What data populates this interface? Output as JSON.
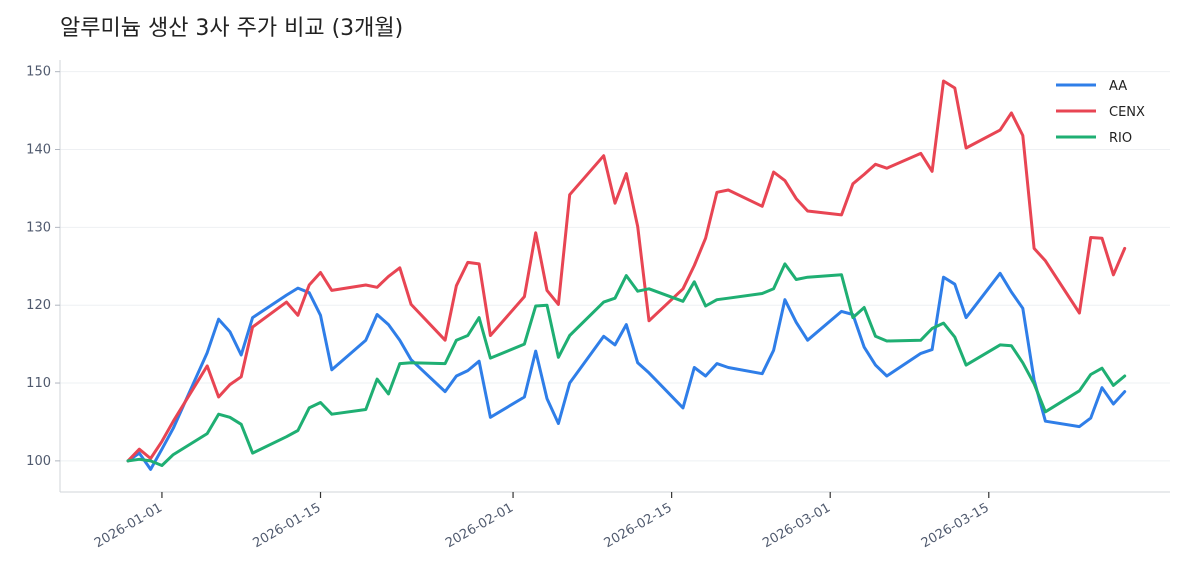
{
  "chart_data": {
    "type": "line",
    "title": "알루미늄 생산 3사 주가 비교 (3개월)",
    "xlabel": "",
    "ylabel": "",
    "ylim": [
      96,
      151.5
    ],
    "xlim": [
      "2025-12-23",
      "2026-03-31"
    ],
    "grid": "horizontal",
    "legend_position": "top-right",
    "y_ticks": [
      100,
      110,
      120,
      130,
      140,
      150
    ],
    "x_ticks": [
      "2026-01-01",
      "2026-01-15",
      "2026-02-01",
      "2026-02-15",
      "2026-03-01",
      "2026-03-15"
    ],
    "dates": [
      "2025-12-29",
      "2025-12-30",
      "2025-12-31",
      "2026-01-01",
      "2026-01-02",
      "2026-01-05",
      "2026-01-06",
      "2026-01-07",
      "2026-01-08",
      "2026-01-09",
      "2026-01-12",
      "2026-01-13",
      "2026-01-14",
      "2026-01-15",
      "2026-01-16",
      "2026-01-19",
      "2026-01-20",
      "2026-01-21",
      "2026-01-22",
      "2026-01-23",
      "2026-01-26",
      "2026-01-27",
      "2026-01-28",
      "2026-01-29",
      "2026-01-30",
      "2026-02-02",
      "2026-02-03",
      "2026-02-04",
      "2026-02-05",
      "2026-02-06",
      "2026-02-09",
      "2026-02-10",
      "2026-02-11",
      "2026-02-12",
      "2026-02-13",
      "2026-02-16",
      "2026-02-17",
      "2026-02-18",
      "2026-02-19",
      "2026-02-20",
      "2026-02-23",
      "2026-02-24",
      "2026-02-25",
      "2026-02-26",
      "2026-02-27",
      "2026-03-02",
      "2026-03-03",
      "2026-03-04",
      "2026-03-05",
      "2026-03-06",
      "2026-03-09",
      "2026-03-10",
      "2026-03-11",
      "2026-03-12",
      "2026-03-13",
      "2026-03-16",
      "2026-03-17",
      "2026-03-18",
      "2026-03-19",
      "2026-03-20",
      "2026-03-23",
      "2026-03-24",
      "2026-03-25",
      "2026-03-26",
      "2026-03-27"
    ],
    "series": [
      {
        "name": "AA",
        "color": "#2f7ee8",
        "values": [
          100.0,
          101.0,
          98.9,
          101.5,
          104.2,
          113.9,
          118.2,
          116.6,
          113.6,
          118.4,
          121.3,
          122.2,
          121.6,
          118.7,
          111.7,
          115.5,
          118.8,
          117.5,
          115.5,
          113.0,
          108.9,
          110.9,
          111.6,
          112.8,
          105.6,
          108.2,
          114.1,
          108.0,
          104.8,
          110.0,
          116.0,
          114.9,
          117.5,
          112.6,
          111.3,
          106.8,
          112.0,
          110.9,
          112.5,
          112.0,
          111.2,
          114.2,
          120.7,
          117.8,
          115.5,
          119.2,
          118.8,
          114.6,
          112.3,
          110.9,
          113.8,
          114.3,
          123.6,
          122.7,
          118.4,
          124.1,
          121.7,
          119.6,
          110.4,
          105.1,
          104.4,
          105.5,
          109.4,
          107.3,
          108.9
        ]
      },
      {
        "name": "CENX",
        "color": "#e84553",
        "values": [
          100.0,
          101.5,
          100.3,
          102.5,
          105.1,
          112.2,
          108.2,
          109.8,
          110.8,
          117.2,
          120.4,
          118.7,
          122.6,
          124.2,
          121.9,
          122.6,
          122.3,
          123.7,
          124.8,
          120.1,
          115.5,
          122.5,
          125.5,
          125.3,
          116.1,
          121.1,
          129.3,
          121.9,
          120.1,
          134.2,
          139.2,
          133.1,
          136.9,
          130.1,
          118.0,
          122.1,
          125.1,
          128.6,
          134.5,
          134.8,
          132.7,
          137.1,
          136.0,
          133.7,
          132.1,
          131.6,
          135.6,
          136.8,
          138.1,
          137.6,
          139.5,
          137.2,
          148.8,
          147.9,
          140.2,
          142.5,
          144.7,
          141.8,
          127.3,
          125.7,
          119.0,
          128.7,
          128.6,
          123.9,
          127.3
        ]
      },
      {
        "name": "RIO",
        "color": "#1faf73",
        "values": [
          100.0,
          100.2,
          100.0,
          99.4,
          100.8,
          103.5,
          106.0,
          105.6,
          104.7,
          101.0,
          103.1,
          103.9,
          106.8,
          107.5,
          106.0,
          106.6,
          110.5,
          108.6,
          112.5,
          112.6,
          112.5,
          115.5,
          116.1,
          118.4,
          113.2,
          115.0,
          119.9,
          120.0,
          113.3,
          116.1,
          120.4,
          120.9,
          123.8,
          121.8,
          122.1,
          120.5,
          123.0,
          119.9,
          120.7,
          120.9,
          121.5,
          122.1,
          125.3,
          123.3,
          123.6,
          123.9,
          118.4,
          119.7,
          116.0,
          115.4,
          115.5,
          117.0,
          117.7,
          115.9,
          112.3,
          114.9,
          114.8,
          112.6,
          109.9,
          106.3,
          109.0,
          111.1,
          111.9,
          109.7,
          110.9
        ]
      }
    ]
  }
}
